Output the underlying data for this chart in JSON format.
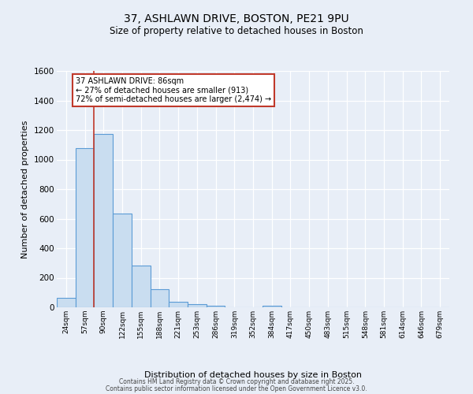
{
  "title": "37, ASHLAWN DRIVE, BOSTON, PE21 9PU",
  "subtitle": "Size of property relative to detached houses in Boston",
  "xlabel": "Distribution of detached houses by size in Boston",
  "ylabel": "Number of detached properties",
  "bin_labels": [
    "24sqm",
    "57sqm",
    "90sqm",
    "122sqm",
    "155sqm",
    "188sqm",
    "221sqm",
    "253sqm",
    "286sqm",
    "319sqm",
    "352sqm",
    "384sqm",
    "417sqm",
    "450sqm",
    "483sqm",
    "515sqm",
    "548sqm",
    "581sqm",
    "614sqm",
    "646sqm",
    "679sqm"
  ],
  "bar_values": [
    65,
    1080,
    1175,
    635,
    285,
    125,
    40,
    20,
    10,
    0,
    0,
    10,
    0,
    0,
    0,
    0,
    0,
    0,
    0,
    0,
    0
  ],
  "bar_color": "#c9ddf0",
  "bar_edge_color": "#5b9bd5",
  "background_color": "#e8eef7",
  "grid_color": "#ffffff",
  "vline_color": "#c0392b",
  "annotation_title": "37 ASHLAWN DRIVE: 86sqm",
  "annotation_line1": "← 27% of detached houses are smaller (913)",
  "annotation_line2": "72% of semi-detached houses are larger (2,474) →",
  "annotation_box_color": "#ffffff",
  "annotation_box_edge": "#c0392b",
  "ylim": [
    0,
    1600
  ],
  "yticks": [
    0,
    200,
    400,
    600,
    800,
    1000,
    1200,
    1400,
    1600
  ],
  "footer1": "Contains HM Land Registry data © Crown copyright and database right 2025.",
  "footer2": "Contains public sector information licensed under the Open Government Licence v3.0."
}
